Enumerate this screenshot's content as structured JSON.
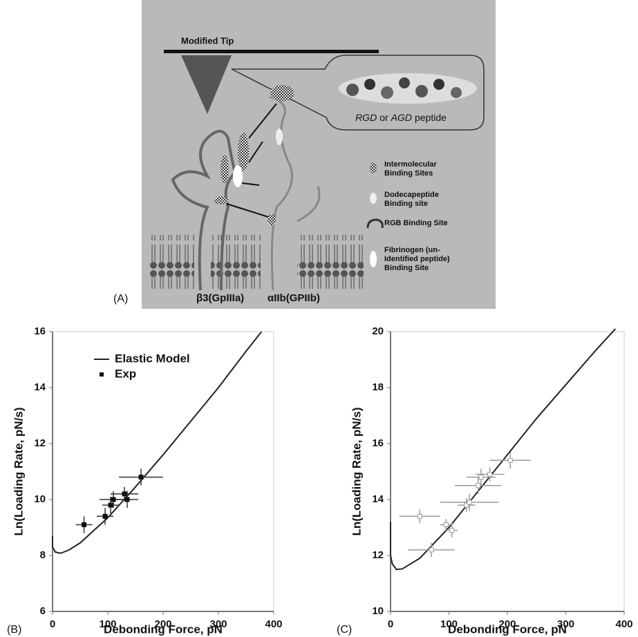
{
  "diagram": {
    "panel_label": "(A)",
    "tip_label": "Modified Tip",
    "peptide_label": [
      "RGD",
      "or",
      "AGD",
      "peptide"
    ],
    "legend": [
      [
        "Intermolecular",
        "Binding Sites"
      ],
      [
        "Dodecapeptide",
        "Binding site"
      ],
      [
        "RGB Binding Site"
      ],
      [
        "Fibrinogen (un-",
        "Identified peptide)",
        "Binding Site"
      ]
    ],
    "subunit_beta": "β3(GpIIIa)",
    "subunit_alpha": "αIIb(GPIIb)"
  },
  "chart_data": [
    {
      "type": "line",
      "panel_label": "(B)",
      "x_label": "Debonding Force, pN",
      "y_label": "Ln(Loading Rate, pN/s)",
      "xlim": [
        0,
        400
      ],
      "xticks": [
        0,
        100,
        200,
        300,
        400
      ],
      "ylim": [
        6,
        16
      ],
      "yticks": [
        6,
        8,
        10,
        12,
        14,
        16
      ],
      "grid": false,
      "legend": "upper left",
      "series": [
        {
          "name": "Elastic Model",
          "style": "line",
          "color": "#222222",
          "x": [
            0,
            0,
            5,
            15,
            30,
            50,
            100,
            150,
            200,
            250,
            300,
            350,
            378
          ],
          "values": [
            8.7,
            8.3,
            8.12,
            8.08,
            8.2,
            8.45,
            9.35,
            10.45,
            11.6,
            12.8,
            14.0,
            15.3,
            16
          ]
        },
        {
          "name": "Exp",
          "style": "points",
          "color": "#111111",
          "x": [
            57,
            95,
            105,
            110,
            130,
            135,
            160
          ],
          "values": [
            9.1,
            9.4,
            9.8,
            10.0,
            10.2,
            10.0,
            10.8
          ],
          "x_error": [
            15,
            15,
            15,
            25,
            25,
            20,
            40
          ],
          "y_error": [
            0.3,
            0.3,
            0.3,
            0.3,
            0.25,
            0.3,
            0.3
          ]
        }
      ]
    },
    {
      "type": "line",
      "panel_label": "(C)",
      "x_label": "Debonding Force, pN",
      "y_label": "Ln(Loading Rate, pN/s)",
      "xlim": [
        0,
        400
      ],
      "xticks": [
        0,
        100,
        200,
        300,
        400
      ],
      "ylim": [
        10,
        20
      ],
      "yticks": [
        10,
        12,
        14,
        16,
        18,
        20
      ],
      "grid": false,
      "series": [
        {
          "style": "line",
          "color": "#222222",
          "x": [
            0,
            0,
            3,
            10,
            20,
            50,
            100,
            150,
            200,
            250,
            300,
            350,
            385
          ],
          "values": [
            13.2,
            12.0,
            11.7,
            11.5,
            11.52,
            11.9,
            13.0,
            14.3,
            15.6,
            16.9,
            18.1,
            19.3,
            20.1
          ]
        },
        {
          "style": "points",
          "color": "#999999",
          "x": [
            50,
            70,
            95,
            105,
            130,
            135,
            150,
            155,
            170,
            205
          ],
          "values": [
            13.4,
            12.2,
            13.1,
            12.9,
            13.8,
            13.9,
            14.5,
            14.8,
            14.9,
            15.4
          ],
          "x_error": [
            35,
            40,
            10,
            10,
            15,
            50,
            40,
            25,
            25,
            35
          ],
          "y_error": [
            0.25,
            0.25,
            0.2,
            0.25,
            0.25,
            0.3,
            0.3,
            0.3,
            0.25,
            0.3
          ]
        }
      ]
    }
  ]
}
